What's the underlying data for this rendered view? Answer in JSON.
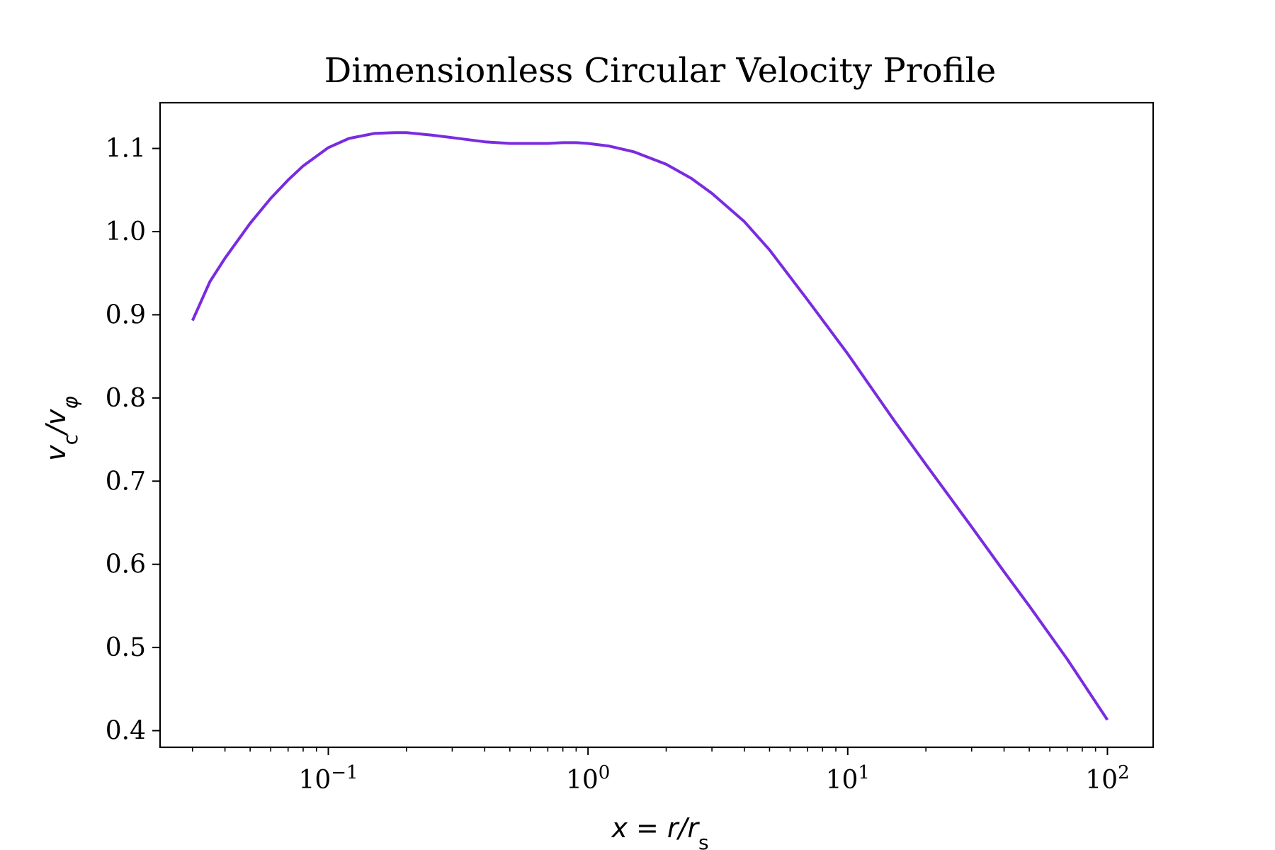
{
  "chart_data": {
    "type": "line",
    "title": "Dimensionless Circular Velocity Profile",
    "xlabel": "x = r/r_s",
    "ylabel": "v_c/v_φ",
    "xscale": "log",
    "xlim": [
      0.0225,
      150
    ],
    "ylim": [
      0.38,
      1.155
    ],
    "grid": false,
    "legend": "none",
    "xticks": [
      {
        "value": 0.1,
        "base": "10",
        "exp": "−1"
      },
      {
        "value": 1,
        "base": "10",
        "exp": "0"
      },
      {
        "value": 10,
        "base": "10",
        "exp": "1"
      },
      {
        "value": 100,
        "base": "10",
        "exp": "2"
      }
    ],
    "yticks": [
      0.4,
      0.5,
      0.6,
      0.7,
      0.8,
      0.9,
      1.0,
      1.1
    ],
    "ytick_labels": [
      "0.4",
      "0.5",
      "0.6",
      "0.7",
      "0.8",
      "0.9",
      "1.0",
      "1.1"
    ],
    "series": [
      {
        "name": "v_c/v_φ",
        "color": "#7a2be0",
        "x": [
          0.03,
          0.035,
          0.04,
          0.05,
          0.06,
          0.07,
          0.08,
          0.1,
          0.12,
          0.15,
          0.18,
          0.2,
          0.25,
          0.3,
          0.4,
          0.5,
          0.6,
          0.7,
          0.8,
          0.9,
          1.0,
          1.2,
          1.5,
          2.0,
          2.5,
          3.0,
          4.0,
          5.0,
          7.0,
          10,
          15,
          20,
          30,
          40,
          50,
          70,
          100
        ],
        "y": [
          0.893,
          0.94,
          0.968,
          1.01,
          1.04,
          1.062,
          1.079,
          1.101,
          1.112,
          1.118,
          1.119,
          1.119,
          1.116,
          1.113,
          1.108,
          1.106,
          1.106,
          1.106,
          1.107,
          1.107,
          1.106,
          1.103,
          1.096,
          1.081,
          1.064,
          1.046,
          1.012,
          0.978,
          0.918,
          0.853,
          0.774,
          0.72,
          0.645,
          0.591,
          0.55,
          0.486,
          0.413
        ]
      }
    ]
  }
}
